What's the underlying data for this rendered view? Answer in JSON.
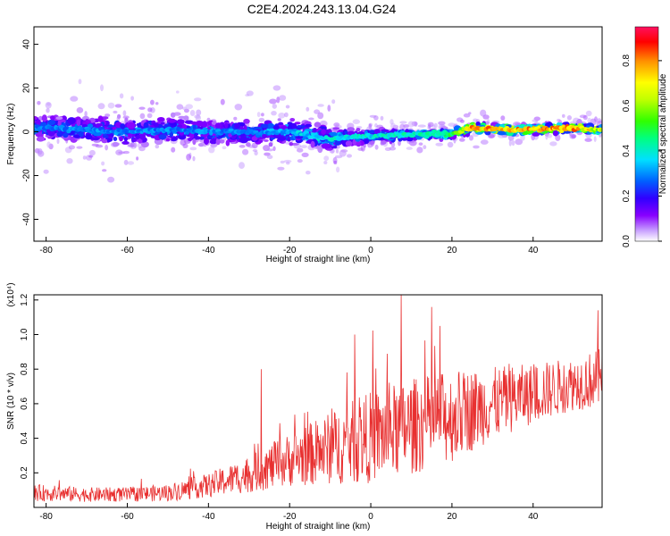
{
  "title": "C2E4.2024.243.13.04.G24",
  "colors": {
    "signal_line": "#e83030",
    "frame": "#000000",
    "spectrogram_scale": [
      "#ffffff",
      "#c8a0ff",
      "#8800ff",
      "#3000ff",
      "#0060ff",
      "#00e0ff",
      "#00ff80",
      "#30ff00",
      "#c0ff00",
      "#ffff00",
      "#ff9000",
      "#ff0000",
      "#ff1060"
    ]
  },
  "chart_data": [
    {
      "type": "heatmap",
      "xlabel": "Height of straight line (km)",
      "ylabel": "Frequency (Hz)",
      "xlim": [
        -83,
        57
      ],
      "ylim": [
        -50,
        48
      ],
      "xticks": [
        -80,
        -60,
        -40,
        -20,
        0,
        20,
        40
      ],
      "yticks": [
        -40,
        -20,
        0,
        20,
        40
      ],
      "colorbar": {
        "label": "Normalized spectral amplitude",
        "range": [
          0,
          0.95
        ],
        "ticks": [
          "0.0",
          "0.2",
          "0.4",
          "0.6",
          "0.8"
        ]
      },
      "ridge": {
        "x": [
          -83,
          -70,
          -60,
          -50,
          -40,
          -30,
          -20,
          -10,
          0,
          10,
          20,
          25,
          30,
          40,
          50,
          57
        ],
        "frequency": [
          2,
          1,
          0,
          1,
          0,
          0,
          0,
          -3,
          -2,
          -1,
          -1,
          2,
          1,
          1,
          2,
          1
        ],
        "peak_amplitude": [
          0.35,
          0.35,
          0.35,
          0.35,
          0.35,
          0.35,
          0.4,
          0.45,
          0.45,
          0.5,
          0.55,
          0.9,
          0.9,
          0.9,
          0.9,
          0.75
        ]
      },
      "spread_hz": {
        "x": [
          -83,
          -60,
          -40,
          -20,
          -10,
          0,
          20,
          40,
          57
        ],
        "halfwidth": [
          8,
          9,
          8,
          8,
          7,
          4,
          3,
          3,
          3
        ]
      }
    },
    {
      "type": "line",
      "xlabel": "Height of straight line (km)",
      "ylabel": "SNR (10 * v/v)",
      "yscale_label": "(x10⁴)",
      "xlim": [
        -83,
        57
      ],
      "ylim": [
        0,
        1.23
      ],
      "xticks": [
        -80,
        -60,
        -40,
        -20,
        0,
        20,
        40
      ],
      "yticks": [
        "0.2",
        "0.4",
        "0.6",
        "0.8",
        "1.0",
        "1.2"
      ],
      "trend": {
        "x": [
          -83,
          -70,
          -60,
          -50,
          -40,
          -30,
          -20,
          -10,
          0,
          10,
          20,
          30,
          40,
          50,
          57
        ],
        "mean": [
          0.08,
          0.07,
          0.07,
          0.08,
          0.12,
          0.18,
          0.26,
          0.32,
          0.38,
          0.44,
          0.5,
          0.58,
          0.64,
          0.7,
          0.73
        ],
        "noise_amplitude": [
          0.07,
          0.06,
          0.06,
          0.07,
          0.1,
          0.15,
          0.22,
          0.3,
          0.38,
          0.4,
          0.38,
          0.3,
          0.25,
          0.22,
          0.25
        ]
      },
      "notable_peaks": [
        {
          "x": -27,
          "y": 0.8
        },
        {
          "x": -4,
          "y": 1.0
        },
        {
          "x": 7.5,
          "y": 1.23
        },
        {
          "x": 17,
          "y": 1.05
        },
        {
          "x": 56,
          "y": 1.14
        }
      ]
    }
  ]
}
